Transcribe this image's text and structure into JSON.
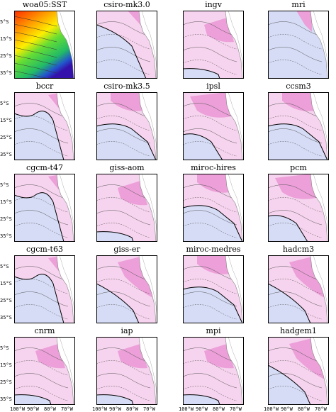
{
  "panels": [
    {
      "title": "woa05:SST",
      "style": "rainbow"
    },
    {
      "title": "csiro-mk3.0",
      "style": "blueleft"
    },
    {
      "title": "ingv",
      "style": "pink"
    },
    {
      "title": "mri",
      "style": "blue"
    },
    {
      "title": "bccr",
      "style": "mixed"
    },
    {
      "title": "csiro-mk3.5",
      "style": "pinktop"
    },
    {
      "title": "ipsl",
      "style": "pinkstrong"
    },
    {
      "title": "ccsm3",
      "style": "pinktop"
    },
    {
      "title": "cgcm-t47",
      "style": "mixed"
    },
    {
      "title": "giss-aom",
      "style": "pink"
    },
    {
      "title": "miroc-hires",
      "style": "pinktop"
    },
    {
      "title": "pcm",
      "style": "pinkstrong"
    },
    {
      "title": "cgcm-t63",
      "style": "mixed"
    },
    {
      "title": "giss-er",
      "style": "pinkdiag"
    },
    {
      "title": "miroc-medres",
      "style": "pinktop"
    },
    {
      "title": "hadcm3",
      "style": "pinkdiag"
    },
    {
      "title": "cnrm",
      "style": "pink"
    },
    {
      "title": "iap",
      "style": "pink"
    },
    {
      "title": "mpi",
      "style": "pink"
    },
    {
      "title": "hadgem1",
      "style": "pinkdiag"
    }
  ],
  "ylabels": [
    "5°S",
    "15°S",
    "25°S",
    "35°S"
  ],
  "xlabels": [
    "100°W",
    "90°W",
    "80°W",
    "70°W"
  ],
  "colors": {
    "pink_light": "#f6d3ee",
    "pink_mid": "#ec9fd8",
    "pink_strong": "#d94fb5",
    "blue_light": "#d6dcf6",
    "blue_mid": "#b9c4ef",
    "land": "#ffffff",
    "contour": "#555555"
  }
}
